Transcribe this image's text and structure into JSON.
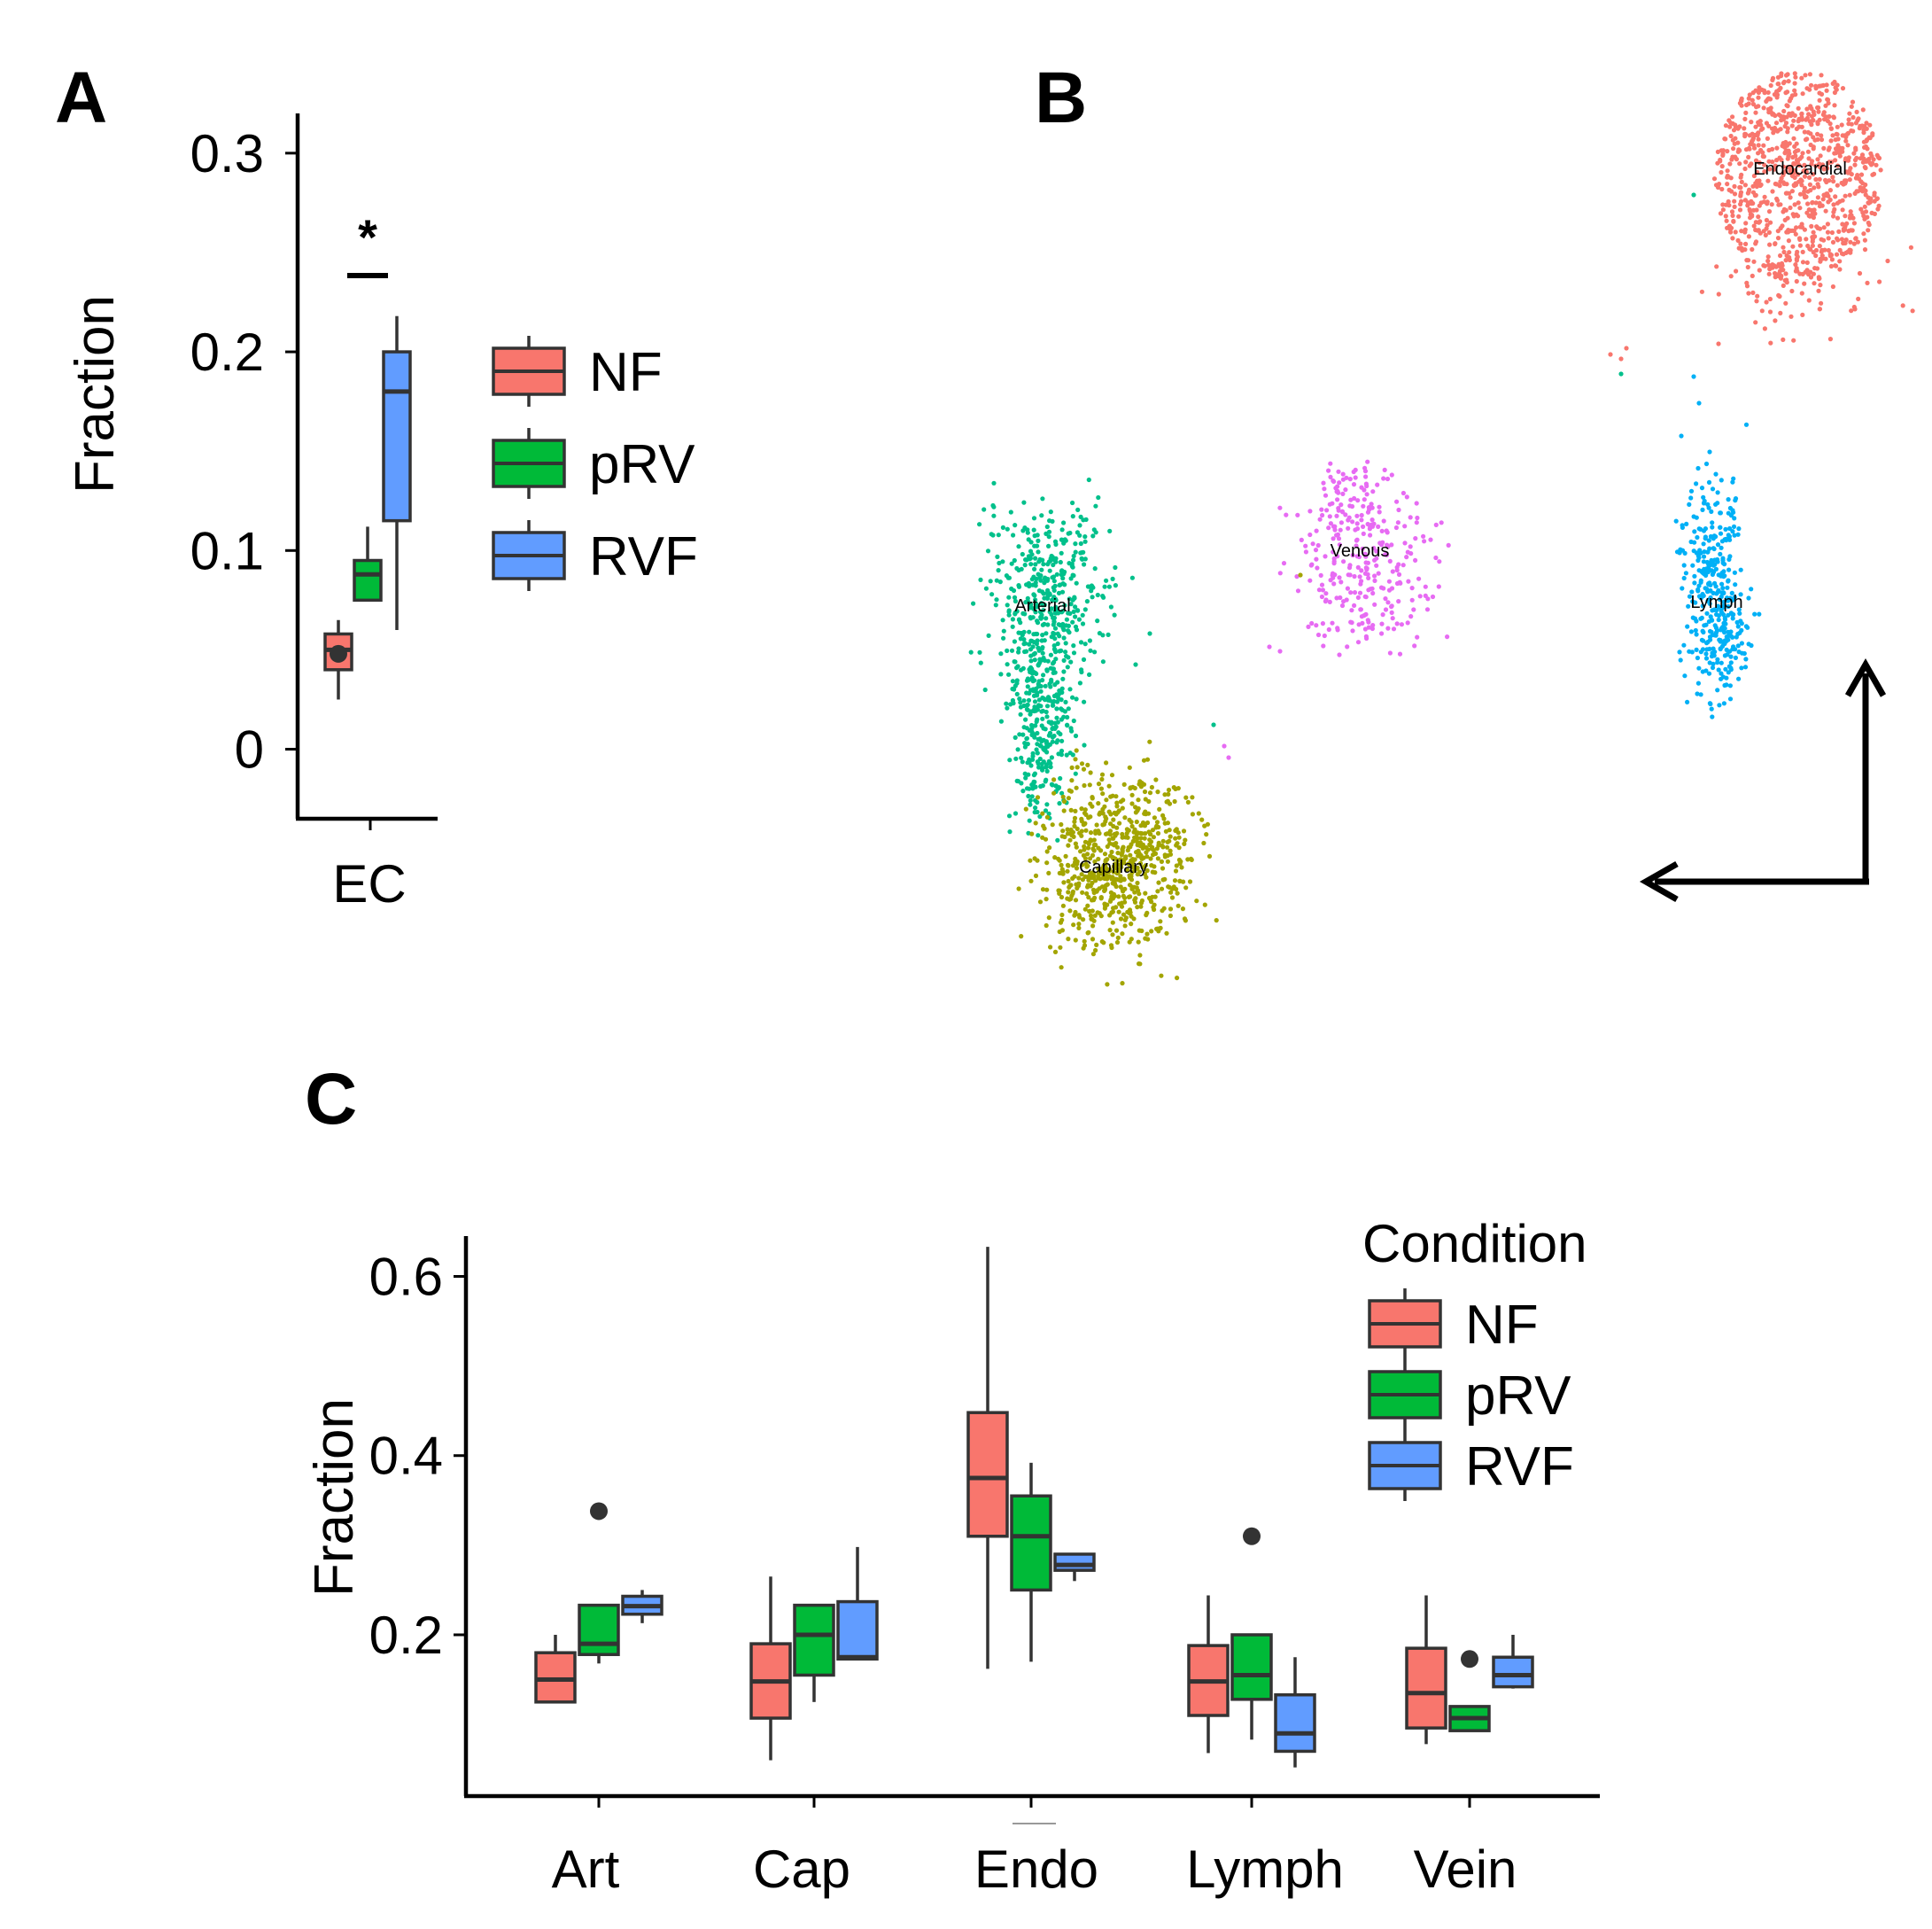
{
  "panels": {
    "a": "A",
    "b": "B",
    "c": "C"
  },
  "colors": {
    "NF": "#F8766D",
    "pRV": "#00BA38",
    "RVF": "#619CFF",
    "Arterial": "#00C08B",
    "Capillary": "#A3A500",
    "Venous": "#E76BF3",
    "Lymph": "#00B0F6",
    "Endocardial": "#F8766D"
  },
  "chart_data": [
    {
      "type": "box",
      "panel": "A",
      "ylabel": "Fraction",
      "ylim": [
        -0.035,
        0.32
      ],
      "yticks": [
        0,
        0.1,
        0.2,
        0.3
      ],
      "ytick_labels": [
        "0",
        "0.1",
        "0.2",
        "0.3"
      ],
      "categories": [
        "EC"
      ],
      "significance": "*",
      "series": [
        {
          "name": "NF",
          "boxes": [
            {
              "min": 0.025,
              "q1": 0.04,
              "median": 0.05,
              "q3": 0.058,
              "max": 0.065,
              "outliers": [
                0.048
              ]
            }
          ]
        },
        {
          "name": "pRV",
          "boxes": [
            {
              "min": 0.075,
              "q1": 0.075,
              "median": 0.088,
              "q3": 0.095,
              "max": 0.112,
              "outliers": []
            }
          ]
        },
        {
          "name": "RVF",
          "boxes": [
            {
              "min": 0.06,
              "q1": 0.115,
              "median": 0.18,
              "q3": 0.2,
              "max": 0.218,
              "outliers": []
            }
          ]
        }
      ],
      "legend": [
        "NF",
        "pRV",
        "RVF"
      ]
    },
    {
      "type": "scatter",
      "panel": "B",
      "clusters": [
        "Endocardial",
        "Venous",
        "Arterial",
        "Lymph",
        "Capillary"
      ]
    },
    {
      "type": "box",
      "panel": "C",
      "ylabel": "Fraction",
      "ylim": [
        0.02,
        0.645
      ],
      "yticks": [
        0.2,
        0.4,
        0.6
      ],
      "ytick_labels": [
        "0.2",
        "0.4",
        "0.6"
      ],
      "categories": [
        "Art",
        "Cap",
        "Endo",
        "Lymph",
        "Vein"
      ],
      "legend_title": "Condition",
      "legend": [
        "NF",
        "pRV",
        "RVF"
      ],
      "series": [
        {
          "name": "NF",
          "boxes": [
            {
              "min": 0.125,
              "q1": 0.125,
              "median": 0.15,
              "q3": 0.18,
              "max": 0.2,
              "outliers": []
            },
            {
              "min": 0.06,
              "q1": 0.107,
              "median": 0.148,
              "q3": 0.19,
              "max": 0.265,
              "outliers": []
            },
            {
              "min": 0.162,
              "q1": 0.31,
              "median": 0.375,
              "q3": 0.448,
              "max": 0.633,
              "outliers": []
            },
            {
              "min": 0.068,
              "q1": 0.11,
              "median": 0.148,
              "q3": 0.188,
              "max": 0.244,
              "outliers": []
            },
            {
              "min": 0.078,
              "q1": 0.096,
              "median": 0.135,
              "q3": 0.185,
              "max": 0.244,
              "outliers": []
            }
          ]
        },
        {
          "name": "pRV",
          "boxes": [
            {
              "min": 0.168,
              "q1": 0.178,
              "median": 0.19,
              "q3": 0.233,
              "max": 0.233,
              "outliers": [
                0.338
              ]
            },
            {
              "min": 0.125,
              "q1": 0.155,
              "median": 0.2,
              "q3": 0.233,
              "max": 0.233,
              "outliers": []
            },
            {
              "min": 0.17,
              "q1": 0.25,
              "median": 0.31,
              "q3": 0.355,
              "max": 0.392,
              "outliers": []
            },
            {
              "min": 0.083,
              "q1": 0.128,
              "median": 0.155,
              "q3": 0.2,
              "max": 0.2,
              "outliers": [
                0.31
              ]
            },
            {
              "min": 0.093,
              "q1": 0.093,
              "median": 0.107,
              "q3": 0.12,
              "max": 0.12,
              "outliers": [
                0.173
              ]
            }
          ]
        },
        {
          "name": "RVF",
          "boxes": [
            {
              "min": 0.213,
              "q1": 0.223,
              "median": 0.232,
              "q3": 0.243,
              "max": 0.25,
              "outliers": []
            },
            {
              "min": 0.173,
              "q1": 0.173,
              "median": 0.175,
              "q3": 0.237,
              "max": 0.298,
              "outliers": []
            },
            {
              "min": 0.26,
              "q1": 0.272,
              "median": 0.278,
              "q3": 0.29,
              "max": 0.29,
              "outliers": []
            },
            {
              "min": 0.052,
              "q1": 0.07,
              "median": 0.09,
              "q3": 0.133,
              "max": 0.175,
              "outliers": []
            },
            {
              "min": 0.14,
              "q1": 0.142,
              "median": 0.155,
              "q3": 0.175,
              "max": 0.2,
              "outliers": []
            }
          ]
        }
      ]
    }
  ]
}
